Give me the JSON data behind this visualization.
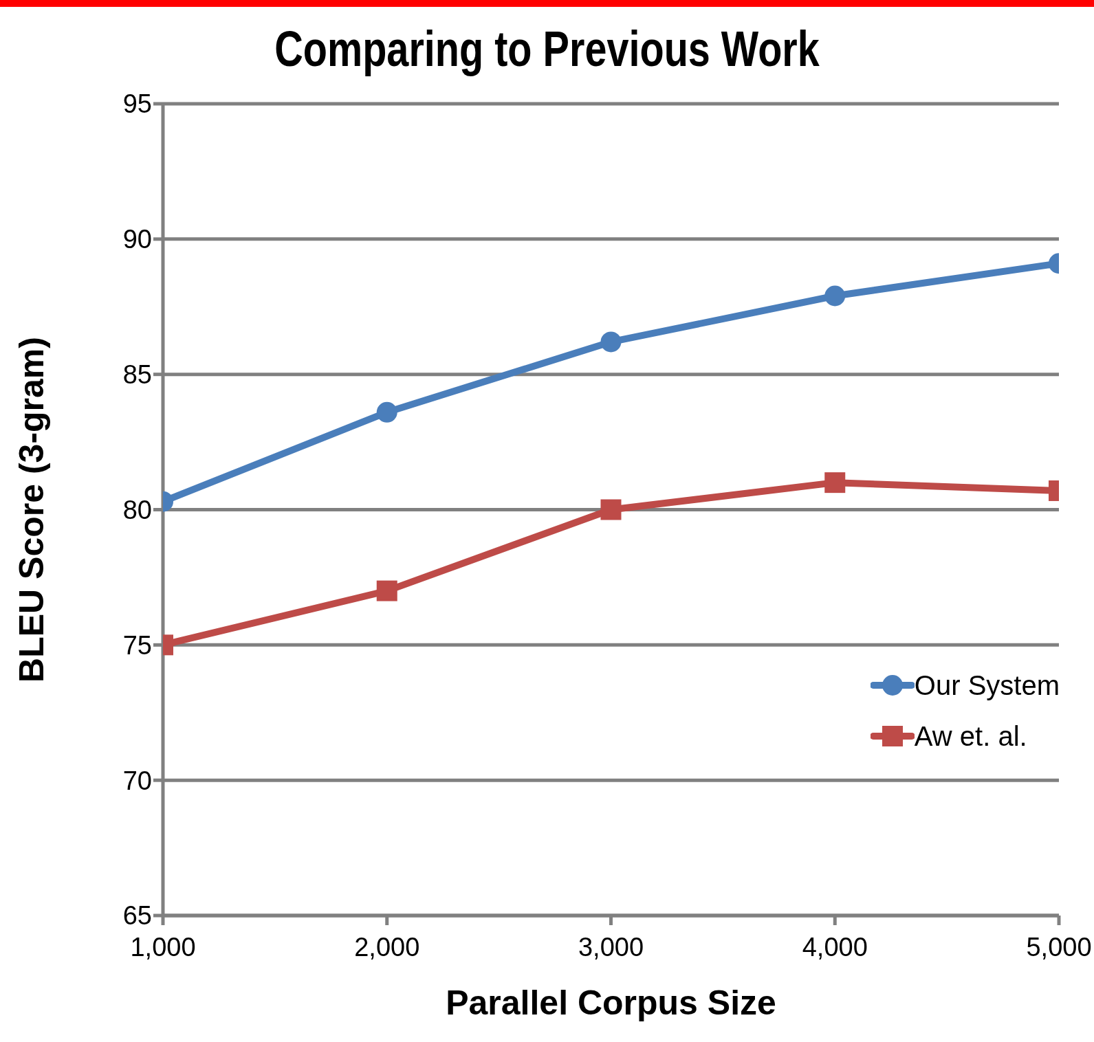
{
  "chart_data": {
    "type": "line",
    "title": "Comparing to Previous Work",
    "xlabel": "Parallel Corpus Size",
    "ylabel": "BLEU Score (3-gram)",
    "x": [
      1000,
      2000,
      3000,
      4000,
      5000
    ],
    "series": [
      {
        "name": "Our System",
        "color": "#4a7ebb",
        "marker": "circle",
        "values": [
          80.3,
          83.6,
          86.2,
          87.9,
          89.1
        ]
      },
      {
        "name": "Aw et. al.",
        "color": "#be4b48",
        "marker": "square",
        "values": [
          75.0,
          77.0,
          80.0,
          81.0,
          80.7
        ]
      }
    ],
    "xlim": [
      1000,
      5000
    ],
    "xticks": [
      {
        "value": 1000,
        "label": "1,000"
      },
      {
        "value": 2000,
        "label": "2,000"
      },
      {
        "value": 3000,
        "label": "3,000"
      },
      {
        "value": 4000,
        "label": "4,000"
      },
      {
        "value": 5000,
        "label": "5,000"
      }
    ],
    "ylim": [
      65,
      95
    ],
    "yticks": [
      65,
      70,
      75,
      80,
      85,
      90,
      95
    ],
    "grid": "y",
    "legend": "right",
    "line_style": "solid"
  }
}
